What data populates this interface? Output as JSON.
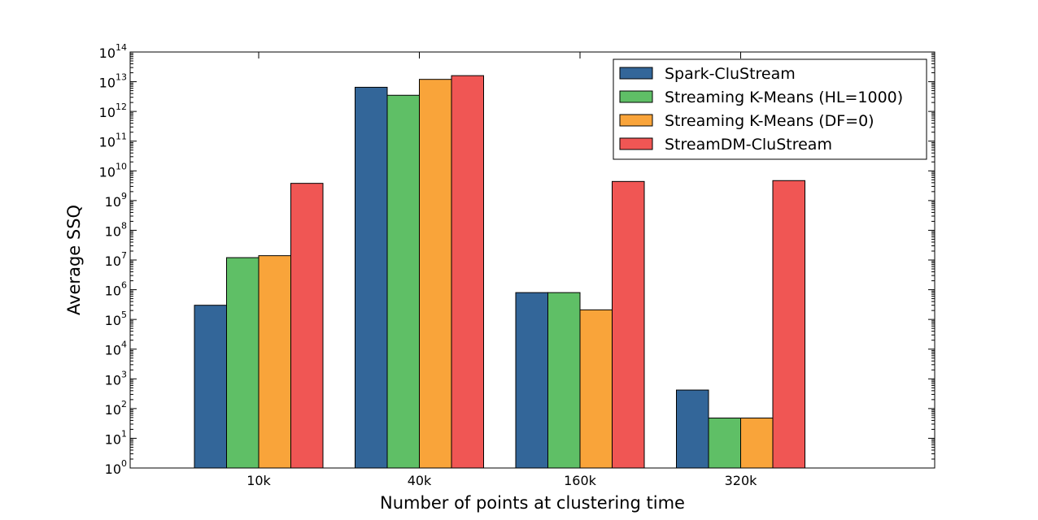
{
  "chart_data": {
    "type": "bar",
    "title": "",
    "xlabel": "Number of points at clustering time",
    "ylabel": "Average SSQ",
    "yscale": "log",
    "ylim": [
      1,
      100000000000000
    ],
    "y_tick_base": "10",
    "y_tick_exponents": [
      "0",
      "1",
      "2",
      "3",
      "4",
      "5",
      "6",
      "7",
      "8",
      "9",
      "10",
      "11",
      "12",
      "13",
      "14"
    ],
    "categories": [
      "10k",
      "40k",
      "160k",
      "320k"
    ],
    "legend_position": "top-right",
    "grid": false,
    "series": [
      {
        "name": "Spark-CluStream",
        "color": "#336699",
        "values": [
          300000,
          6500000000000,
          800000,
          420
        ]
      },
      {
        "name": "Streaming K-Means (HL=1000)",
        "color": "#5fbf66",
        "values": [
          12000000,
          3500000000000,
          800000,
          48
        ]
      },
      {
        "name": "Streaming K-Means (DF=0)",
        "color": "#f9a43a",
        "values": [
          14000000,
          12000000000000,
          210000,
          48
        ]
      },
      {
        "name": "StreamDM-CluStream",
        "color": "#f05654",
        "values": [
          3800000000,
          16000000000000,
          4400000000,
          4700000000
        ]
      }
    ]
  }
}
